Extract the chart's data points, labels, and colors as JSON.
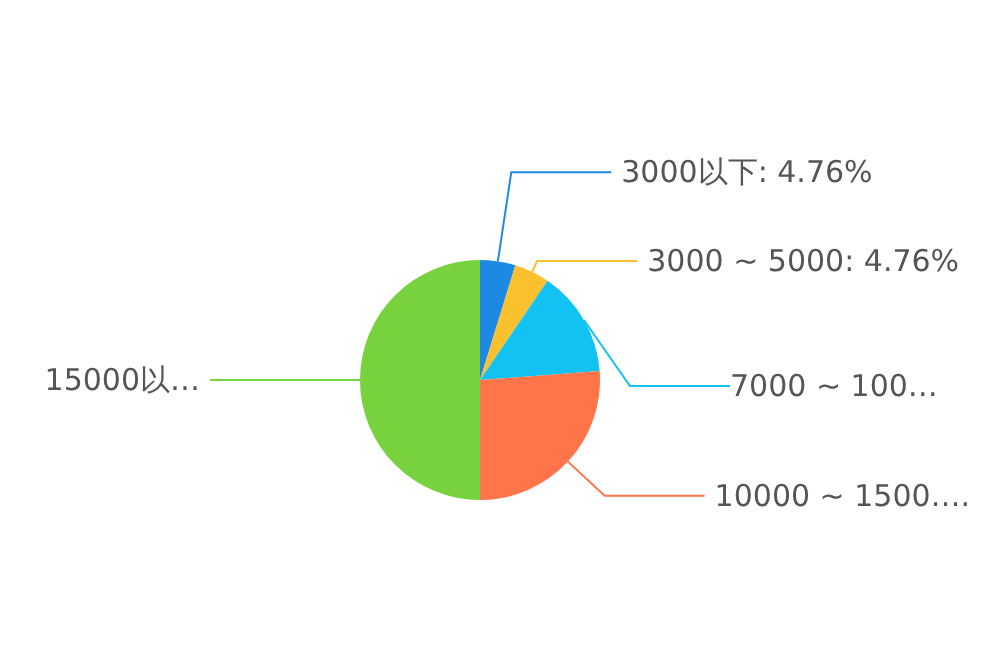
{
  "chart_data": {
    "type": "pie",
    "categories": [
      "3000以下",
      "3000 ~ 5000",
      "7000 ~ 100…",
      "10000 ~ 1500….",
      "15000以…"
    ],
    "values": [
      4.76,
      4.76,
      14.29,
      26.19,
      50
    ],
    "colors": [
      "#1e88e5",
      "#fbc02d",
      "#12c2f2",
      "#ff7448",
      "#78d23d"
    ],
    "value_labels": [
      "4.76%",
      "4.76%",
      null,
      null,
      null
    ]
  }
}
